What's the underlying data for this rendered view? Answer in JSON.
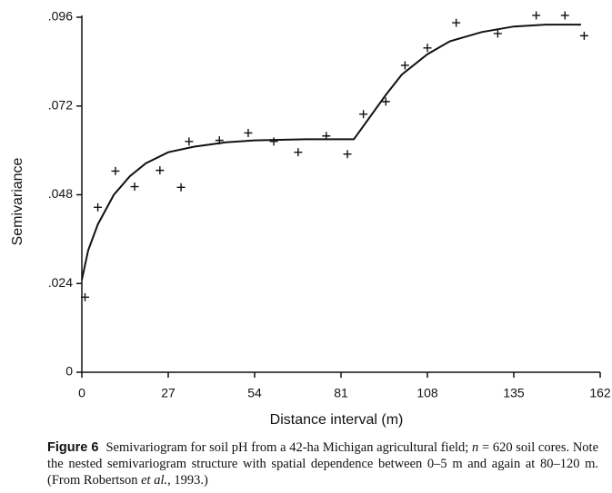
{
  "chart_data": {
    "type": "scatter",
    "xlabel": "Distance interval (m)",
    "ylabel": "Semivariance",
    "xlim": [
      0,
      162
    ],
    "ylim": [
      0,
      0.096
    ],
    "xticks": [
      0,
      27,
      54,
      81,
      108,
      135,
      162
    ],
    "yticks": [
      0,
      {
        "value": 0.024,
        "label": ".024"
      },
      {
        "value": 0.048,
        "label": ".048"
      },
      {
        "value": 0.072,
        "label": ".072"
      },
      {
        "value": 0.096,
        "label": ".096"
      }
    ],
    "series": [
      {
        "type": "line",
        "color": "#111111",
        "x": [
          0,
          2,
          5,
          10,
          15,
          20,
          27,
          35,
          45,
          54,
          70,
          85,
          90,
          95,
          100,
          108,
          115,
          125,
          135,
          145,
          156
        ],
        "values": [
          0.025,
          0.033,
          0.04,
          0.048,
          0.053,
          0.0565,
          0.0595,
          0.061,
          0.0622,
          0.0627,
          0.063,
          0.063,
          0.069,
          0.075,
          0.0805,
          0.086,
          0.0895,
          0.092,
          0.0935,
          0.094,
          0.094
        ]
      },
      {
        "type": "scatter",
        "color": "#111111",
        "x": [
          1,
          5,
          10.5,
          16.5,
          24.4,
          31,
          33.5,
          43,
          52,
          60,
          67.6,
          76.4,
          83,
          88,
          95,
          101,
          108,
          117,
          130,
          142,
          151,
          157
        ],
        "values": [
          0.0203,
          0.0446,
          0.0544,
          0.0502,
          0.0546,
          0.05,
          0.0624,
          0.0627,
          0.0647,
          0.0624,
          0.0595,
          0.0639,
          0.059,
          0.0698,
          0.0732,
          0.083,
          0.0877,
          0.0945,
          0.0916,
          0.0965,
          0.0965,
          0.091
        ]
      }
    ],
    "caption": {
      "label": "Figure 6",
      "parts": [
        "Semivariogram for soil pH from a 42-ha Michigan agricultural field; ",
        "n",
        " = 620 soil cores. Note the nested semivariogram structure with spatial dependence between 0–5 m and again at 80–120 m. (From Robertson ",
        "et al.",
        ", 1993.)"
      ]
    }
  }
}
